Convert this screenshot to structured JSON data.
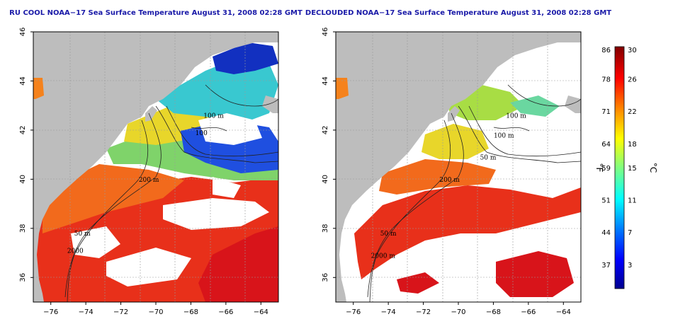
{
  "chart_data": [
    {
      "type": "heatmap",
      "title": "RU COOL NOAA−17 Sea Surface Temperature August 31, 2008 02:28 GMT",
      "xlabel": "",
      "ylabel": "",
      "xlim": [
        -77,
        -63
      ],
      "ylim": [
        35,
        46
      ],
      "xticks": [
        -76,
        -74,
        -72,
        -70,
        -68,
        -66,
        -64
      ],
      "yticks": [
        36,
        38,
        40,
        42,
        44,
        46
      ],
      "grid": true,
      "contour_labels": [
        {
          "text": "100 m",
          "lon": -66.7,
          "lat": 42.5
        },
        {
          "text": "100",
          "lon": -67.4,
          "lat": 41.8
        },
        {
          "text": "200 m",
          "lon": -70.4,
          "lat": 39.9
        },
        {
          "text": "50 m",
          "lon": -74.2,
          "lat": 37.7
        },
        {
          "text": "2000",
          "lon": -74.6,
          "lat": 37.0
        }
      ]
    },
    {
      "type": "heatmap",
      "title": "DECLOUDED NOAA−17 Sea Surface Temperature August 31, 2008 02:28 GMT",
      "xlabel": "",
      "ylabel": "",
      "xlim": [
        -77,
        -63
      ],
      "ylim": [
        35,
        46
      ],
      "xticks": [
        -76,
        -74,
        -72,
        -70,
        -68,
        -66,
        -64
      ],
      "yticks": [
        36,
        38,
        40,
        42,
        44,
        46
      ],
      "grid": true,
      "contour_labels": [
        {
          "text": "100 m",
          "lon": -66.7,
          "lat": 42.5
        },
        {
          "text": "100 m",
          "lon": -67.4,
          "lat": 41.7
        },
        {
          "text": "50 m",
          "lon": -68.3,
          "lat": 40.8
        },
        {
          "text": "200 m",
          "lon": -70.5,
          "lat": 39.9
        },
        {
          "text": "50 m",
          "lon": -74.0,
          "lat": 37.7
        },
        {
          "text": "2000 m",
          "lon": -74.3,
          "lat": 36.8
        }
      ]
    }
  ],
  "colorbar": {
    "fahrenheit_label": "°F",
    "celsius_label": "°C",
    "fahrenheit_ticks": [
      "86",
      "78",
      "71",
      "64",
      "59",
      "51",
      "44",
      "37"
    ],
    "celsius_ticks": [
      "30",
      "26",
      "22",
      "18",
      "15",
      "11",
      "7",
      "3"
    ],
    "celsius_range": [
      0,
      30
    ],
    "colors": [
      "#00008f",
      "#0000ff",
      "#0080ff",
      "#00ffff",
      "#80ff80",
      "#ffff00",
      "#ff8000",
      "#ff0000",
      "#800000"
    ]
  },
  "colors": {
    "land": "#bdbdbd",
    "cloud": "#ffffff",
    "title": "#1a1aa8"
  }
}
